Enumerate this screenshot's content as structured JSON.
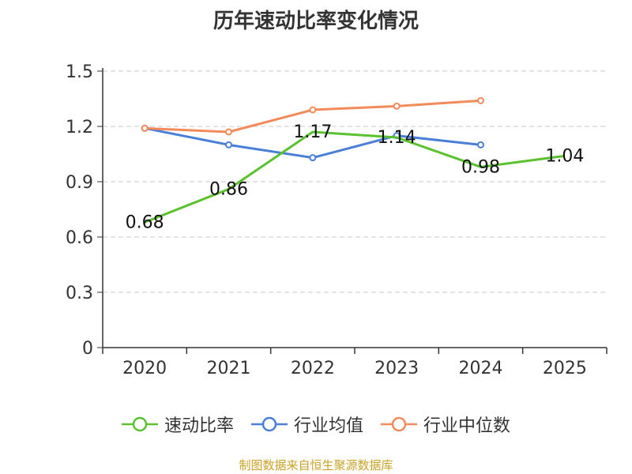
{
  "chart_data": {
    "type": "line",
    "title": "历年速动比率变化情况",
    "categories": [
      "2020",
      "2021",
      "2022",
      "2023",
      "2024",
      "2025"
    ],
    "y_ticks": [
      "0",
      "0.3",
      "0.6",
      "0.9",
      "1.2",
      "1.5"
    ],
    "ylim": [
      0,
      1.5
    ],
    "grid": true,
    "legend_position": "bottom",
    "series": [
      {
        "name": "速动比率",
        "color": "#5ac12f",
        "values": [
          0.68,
          0.86,
          1.17,
          1.14,
          0.98,
          1.04
        ],
        "labels": [
          "0.68",
          "0.86",
          "1.17",
          "1.14",
          "0.98",
          "1.04"
        ],
        "show_markers": false
      },
      {
        "name": "行业均值",
        "color": "#4a7fd8",
        "values": [
          1.19,
          1.1,
          1.03,
          1.15,
          1.1,
          null
        ],
        "show_markers": true
      },
      {
        "name": "行业中位数",
        "color": "#f38a5a",
        "values": [
          1.19,
          1.17,
          1.29,
          1.31,
          1.34,
          null
        ],
        "show_markers": true
      }
    ]
  },
  "source_note": "制图数据来自恒生聚源数据库"
}
